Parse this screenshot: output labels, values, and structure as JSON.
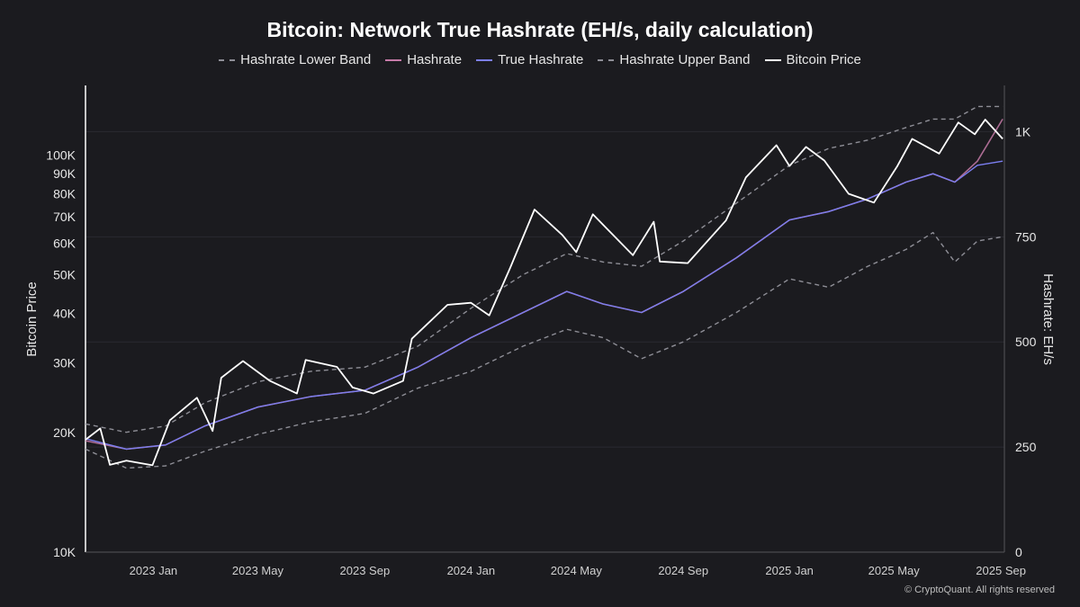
{
  "chart_data": {
    "type": "line",
    "title": "Bitcoin: Network True Hashrate (EH/s, daily calculation)",
    "legend_placement": "top-center",
    "grid": true,
    "x_range": [
      "2022-10-15",
      "2025-09-05"
    ],
    "x_ticks": [
      {
        "date": "2023-01-01",
        "label": "2023 Jan"
      },
      {
        "date": "2023-05-01",
        "label": "2023 May"
      },
      {
        "date": "2023-09-01",
        "label": "2023 Sep"
      },
      {
        "date": "2024-01-01",
        "label": "2024 Jan"
      },
      {
        "date": "2024-05-01",
        "label": "2024 May"
      },
      {
        "date": "2024-09-01",
        "label": "2024 Sep"
      },
      {
        "date": "2025-01-01",
        "label": "2025 Jan"
      },
      {
        "date": "2025-05-01",
        "label": "2025 May"
      },
      {
        "date": "2025-09-01",
        "label": "2025 Sep"
      }
    ],
    "y_left": {
      "label": "Bitcoin Price",
      "scale": "log",
      "range": [
        10000,
        150000
      ],
      "ticks": [
        {
          "value": 10000,
          "label": "10K"
        },
        {
          "value": 20000,
          "label": "20K"
        },
        {
          "value": 30000,
          "label": "30K"
        },
        {
          "value": 40000,
          "label": "40K"
        },
        {
          "value": 50000,
          "label": "50K"
        },
        {
          "value": 60000,
          "label": "60K"
        },
        {
          "value": 70000,
          "label": "70K"
        },
        {
          "value": 80000,
          "label": "80K"
        },
        {
          "value": 90000,
          "label": "90K"
        },
        {
          "value": 100000,
          "label": "100K"
        }
      ]
    },
    "y_right": {
      "label": "Hashrate: EH/s",
      "scale": "linear",
      "range": [
        0,
        1110
      ],
      "ticks": [
        {
          "value": 0,
          "label": "0"
        },
        {
          "value": 250,
          "label": "250"
        },
        {
          "value": 500,
          "label": "500"
        },
        {
          "value": 750,
          "label": "750"
        },
        {
          "value": 1000,
          "label": "1K"
        }
      ]
    },
    "series": [
      {
        "name": "Hashrate Lower Band",
        "axis": "right",
        "color": "#8e8e96",
        "style": "dashed",
        "points": [
          [
            "2022-10-15",
            245
          ],
          [
            "2022-12-01",
            200
          ],
          [
            "2023-01-15",
            205
          ],
          [
            "2023-03-01",
            240
          ],
          [
            "2023-05-01",
            280
          ],
          [
            "2023-07-01",
            310
          ],
          [
            "2023-09-01",
            330
          ],
          [
            "2023-11-01",
            390
          ],
          [
            "2024-01-01",
            430
          ],
          [
            "2024-03-01",
            490
          ],
          [
            "2024-04-20",
            530
          ],
          [
            "2024-06-01",
            510
          ],
          [
            "2024-07-15",
            460
          ],
          [
            "2024-09-01",
            500
          ],
          [
            "2024-11-01",
            570
          ],
          [
            "2025-01-01",
            650
          ],
          [
            "2025-02-15",
            630
          ],
          [
            "2025-04-01",
            680
          ],
          [
            "2025-05-15",
            720
          ],
          [
            "2025-06-15",
            760
          ],
          [
            "2025-07-10",
            690
          ],
          [
            "2025-08-05",
            740
          ],
          [
            "2025-09-03",
            750
          ]
        ]
      },
      {
        "name": "Hashrate",
        "axis": "right",
        "color": "#c67aa8",
        "style": "solid",
        "points": [
          [
            "2022-10-15",
            265
          ],
          [
            "2022-12-01",
            245
          ],
          [
            "2023-01-15",
            255
          ],
          [
            "2023-03-01",
            300
          ],
          [
            "2023-05-01",
            345
          ],
          [
            "2023-07-01",
            370
          ],
          [
            "2023-09-01",
            385
          ],
          [
            "2023-11-01",
            440
          ],
          [
            "2024-01-01",
            510
          ],
          [
            "2024-03-01",
            570
          ],
          [
            "2024-04-20",
            620
          ],
          [
            "2024-06-01",
            590
          ],
          [
            "2024-07-15",
            570
          ],
          [
            "2024-09-01",
            620
          ],
          [
            "2024-11-01",
            700
          ],
          [
            "2025-01-01",
            790
          ],
          [
            "2025-02-15",
            810
          ],
          [
            "2025-04-01",
            840
          ],
          [
            "2025-05-15",
            880
          ],
          [
            "2025-06-15",
            900
          ],
          [
            "2025-07-10",
            880
          ],
          [
            "2025-08-05",
            930
          ],
          [
            "2025-09-03",
            1030
          ]
        ]
      },
      {
        "name": "True Hashrate",
        "axis": "right",
        "color": "#7b7ef0",
        "style": "solid",
        "points": [
          [
            "2022-10-15",
            270
          ],
          [
            "2022-12-01",
            245
          ],
          [
            "2023-01-15",
            255
          ],
          [
            "2023-03-01",
            300
          ],
          [
            "2023-05-01",
            345
          ],
          [
            "2023-07-01",
            370
          ],
          [
            "2023-09-01",
            385
          ],
          [
            "2023-11-01",
            440
          ],
          [
            "2024-01-01",
            510
          ],
          [
            "2024-03-01",
            570
          ],
          [
            "2024-04-20",
            620
          ],
          [
            "2024-06-01",
            590
          ],
          [
            "2024-07-15",
            570
          ],
          [
            "2024-09-01",
            620
          ],
          [
            "2024-11-01",
            700
          ],
          [
            "2025-01-01",
            790
          ],
          [
            "2025-02-15",
            810
          ],
          [
            "2025-04-01",
            840
          ],
          [
            "2025-05-15",
            880
          ],
          [
            "2025-06-15",
            900
          ],
          [
            "2025-07-10",
            880
          ],
          [
            "2025-08-05",
            920
          ],
          [
            "2025-09-03",
            930
          ]
        ]
      },
      {
        "name": "Hashrate Upper Band",
        "axis": "right",
        "color": "#8e8e96",
        "style": "dashed",
        "points": [
          [
            "2022-10-15",
            305
          ],
          [
            "2022-12-01",
            285
          ],
          [
            "2023-01-15",
            300
          ],
          [
            "2023-03-01",
            355
          ],
          [
            "2023-05-01",
            405
          ],
          [
            "2023-07-01",
            430
          ],
          [
            "2023-09-01",
            440
          ],
          [
            "2023-11-01",
            490
          ],
          [
            "2024-01-01",
            580
          ],
          [
            "2024-03-01",
            660
          ],
          [
            "2024-04-20",
            710
          ],
          [
            "2024-06-01",
            690
          ],
          [
            "2024-07-15",
            680
          ],
          [
            "2024-09-01",
            740
          ],
          [
            "2024-11-01",
            830
          ],
          [
            "2025-01-01",
            920
          ],
          [
            "2025-02-15",
            960
          ],
          [
            "2025-04-01",
            980
          ],
          [
            "2025-05-15",
            1010
          ],
          [
            "2025-06-15",
            1030
          ],
          [
            "2025-07-10",
            1030
          ],
          [
            "2025-08-05",
            1060
          ],
          [
            "2025-09-03",
            1060
          ]
        ]
      },
      {
        "name": "Bitcoin Price",
        "axis": "left",
        "color": "#ffffff",
        "style": "solid",
        "points": [
          [
            "2022-10-15",
            19200
          ],
          [
            "2022-11-01",
            20500
          ],
          [
            "2022-11-12",
            16600
          ],
          [
            "2022-12-01",
            17000
          ],
          [
            "2022-12-31",
            16550
          ],
          [
            "2023-01-20",
            21500
          ],
          [
            "2023-02-20",
            24500
          ],
          [
            "2023-03-10",
            20200
          ],
          [
            "2023-03-20",
            27500
          ],
          [
            "2023-04-14",
            30300
          ],
          [
            "2023-05-15",
            27000
          ],
          [
            "2023-06-15",
            25100
          ],
          [
            "2023-06-25",
            30500
          ],
          [
            "2023-07-31",
            29300
          ],
          [
            "2023-08-18",
            26000
          ],
          [
            "2023-09-11",
            25100
          ],
          [
            "2023-10-15",
            27000
          ],
          [
            "2023-10-25",
            34500
          ],
          [
            "2023-12-05",
            42000
          ],
          [
            "2024-01-01",
            42500
          ],
          [
            "2024-01-22",
            39500
          ],
          [
            "2024-02-15",
            52000
          ],
          [
            "2024-03-14",
            73000
          ],
          [
            "2024-04-15",
            63000
          ],
          [
            "2024-05-01",
            57000
          ],
          [
            "2024-05-20",
            71000
          ],
          [
            "2024-07-05",
            56000
          ],
          [
            "2024-07-29",
            68000
          ],
          [
            "2024-08-05",
            54000
          ],
          [
            "2024-09-06",
            53500
          ],
          [
            "2024-10-20",
            68500
          ],
          [
            "2024-11-12",
            88000
          ],
          [
            "2024-12-17",
            106000
          ],
          [
            "2025-01-01",
            94000
          ],
          [
            "2025-01-20",
            105000
          ],
          [
            "2025-02-10",
            97000
          ],
          [
            "2025-03-10",
            80000
          ],
          [
            "2025-04-08",
            76000
          ],
          [
            "2025-05-05",
            94000
          ],
          [
            "2025-05-22",
            110000
          ],
          [
            "2025-06-22",
            101000
          ],
          [
            "2025-07-14",
            121000
          ],
          [
            "2025-08-02",
            113000
          ],
          [
            "2025-08-14",
            123000
          ],
          [
            "2025-09-03",
            110000
          ]
        ]
      }
    ],
    "watermark": "© CryptoQuant. All rights reserved"
  }
}
